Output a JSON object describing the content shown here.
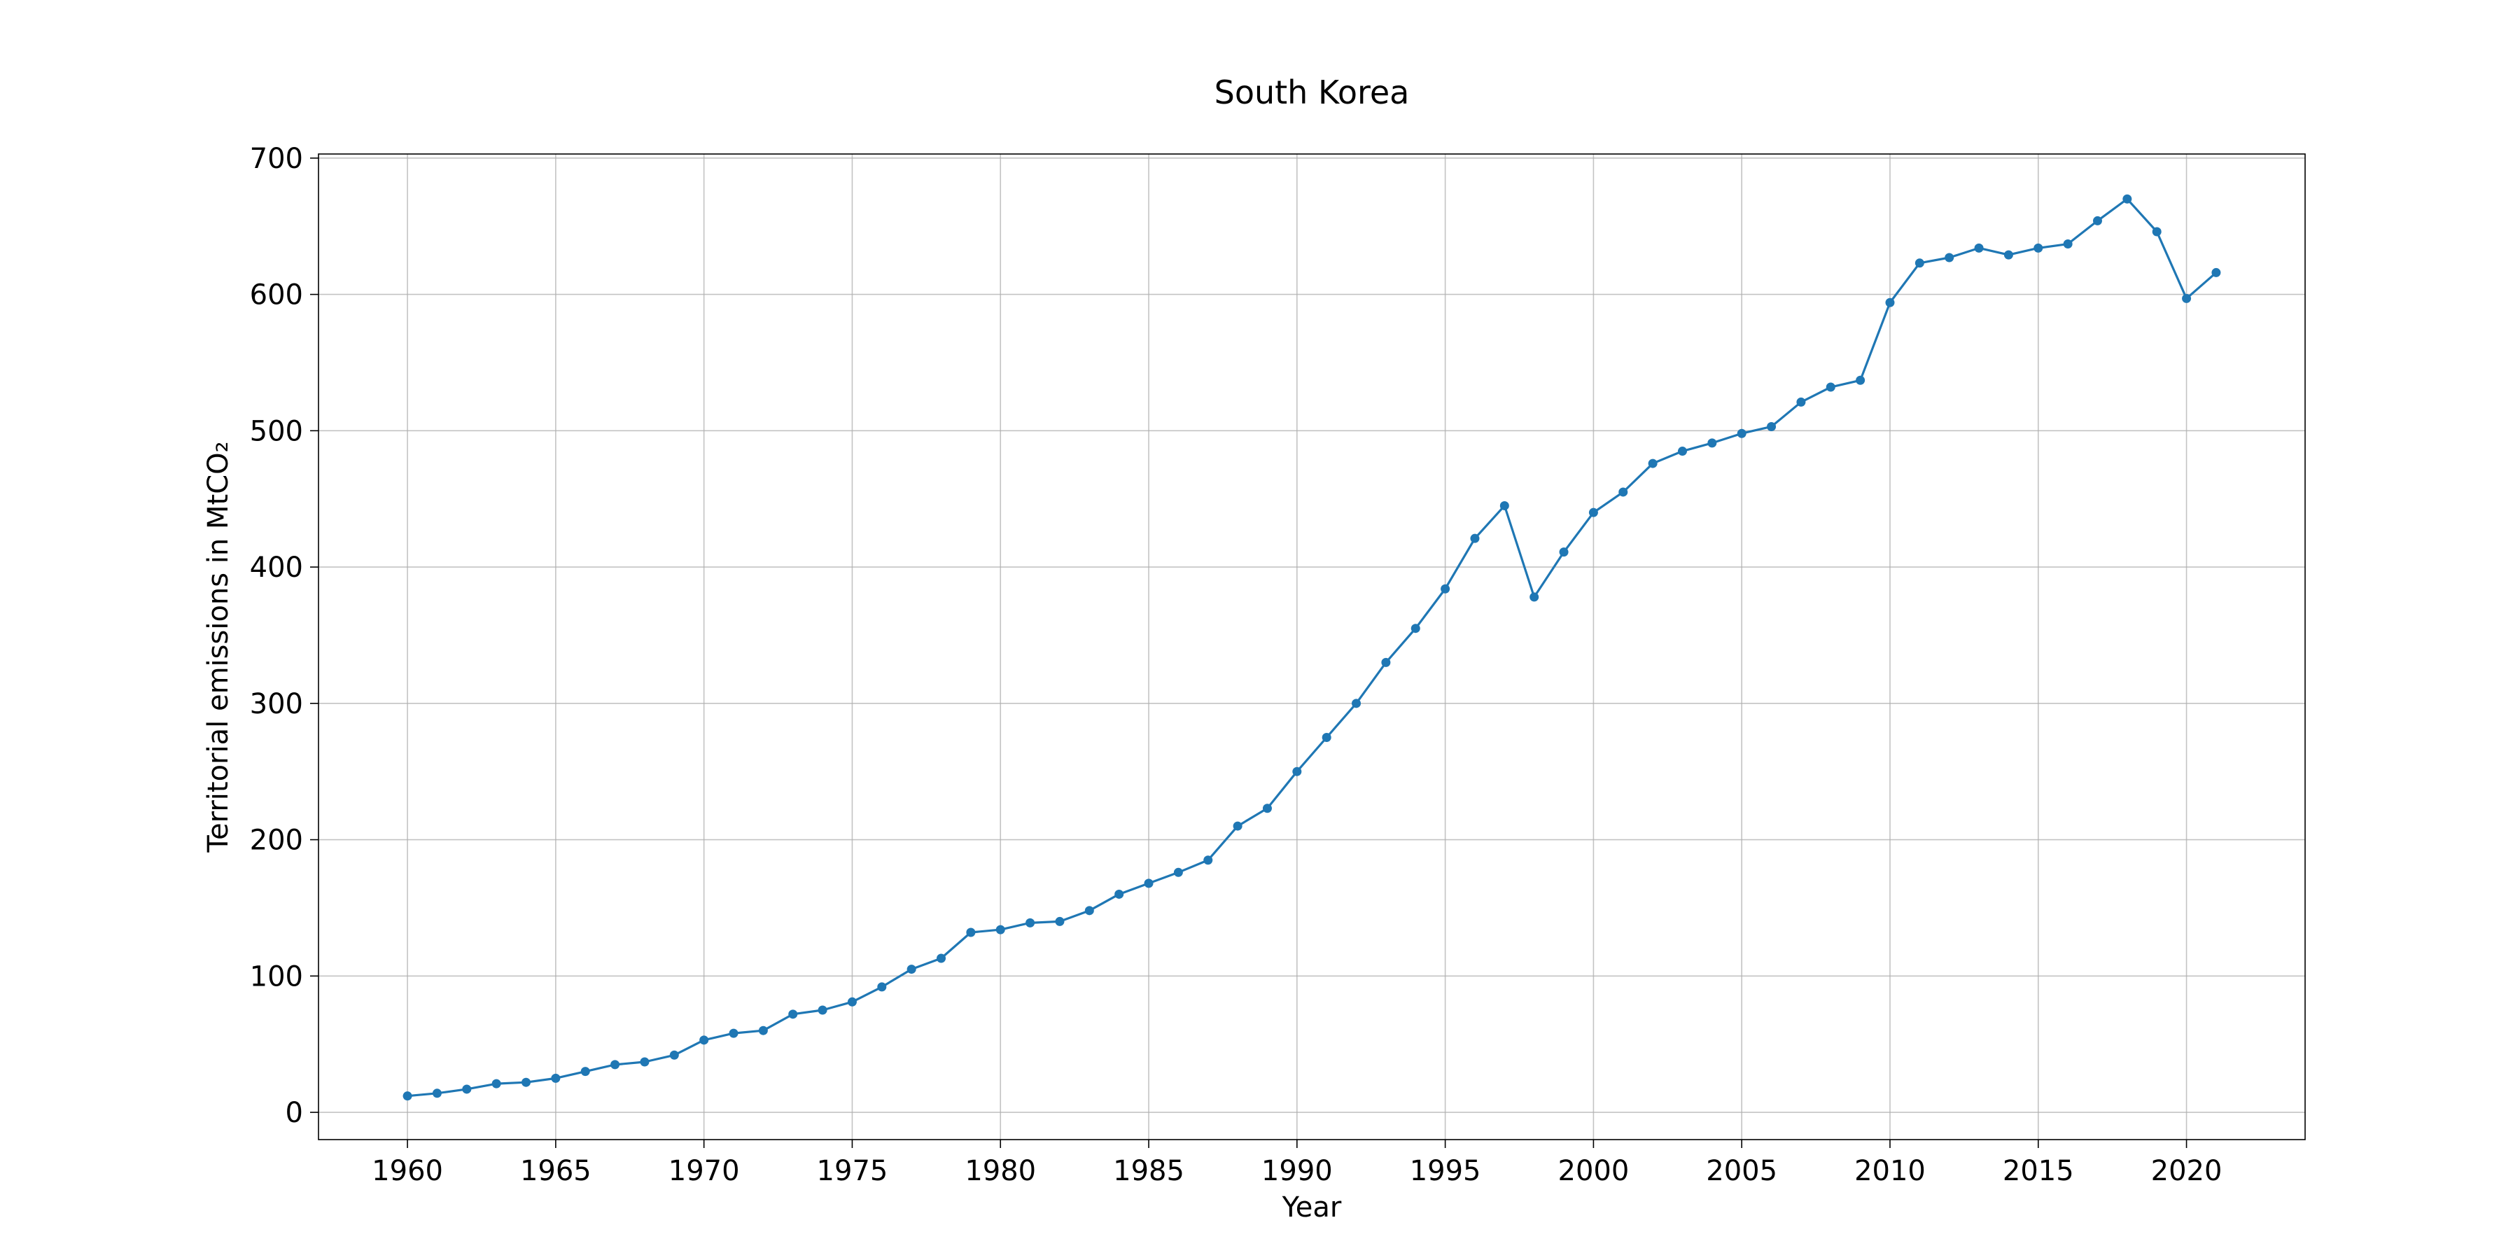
{
  "chart_data": {
    "type": "line",
    "title": "South Korea",
    "xlabel": "Year",
    "ylabel": "Territorial emissions in MtCO₂",
    "xlim": [
      1957,
      2024
    ],
    "ylim": [
      -20,
      703
    ],
    "x_ticks": [
      1960,
      1965,
      1970,
      1975,
      1980,
      1985,
      1990,
      1995,
      2000,
      2005,
      2010,
      2015,
      2020
    ],
    "y_ticks": [
      0,
      100,
      200,
      300,
      400,
      500,
      600,
      700
    ],
    "grid": true,
    "line_color": "#1f77b4",
    "series": [
      {
        "x": [
          1960,
          1961,
          1962,
          1963,
          1964,
          1965,
          1966,
          1967,
          1968,
          1969,
          1970,
          1971,
          1972,
          1973,
          1974,
          1975,
          1976,
          1977,
          1978,
          1979,
          1980,
          1981,
          1982,
          1983,
          1984,
          1985,
          1986,
          1987,
          1988,
          1989,
          1990,
          1991,
          1992,
          1993,
          1994,
          1995,
          1996,
          1997,
          1998,
          1999,
          2000,
          2001,
          2002,
          2003,
          2004,
          2005,
          2006,
          2007,
          2008,
          2009,
          2010,
          2011,
          2012,
          2013,
          2014,
          2015,
          2016,
          2017,
          2018,
          2019,
          2020,
          2021
        ],
        "values": [
          12,
          14,
          17,
          21,
          22,
          25,
          30,
          35,
          37,
          42,
          53,
          58,
          60,
          72,
          75,
          81,
          92,
          105,
          113,
          132,
          134,
          139,
          140,
          148,
          160,
          168,
          176,
          185,
          210,
          223,
          250,
          275,
          300,
          330,
          355,
          384,
          421,
          445,
          378,
          411,
          440,
          455,
          476,
          485,
          491,
          498,
          503,
          521,
          532,
          537,
          594,
          623,
          627,
          634,
          629,
          634,
          637,
          654,
          670,
          646,
          597,
          616
        ]
      }
    ]
  }
}
